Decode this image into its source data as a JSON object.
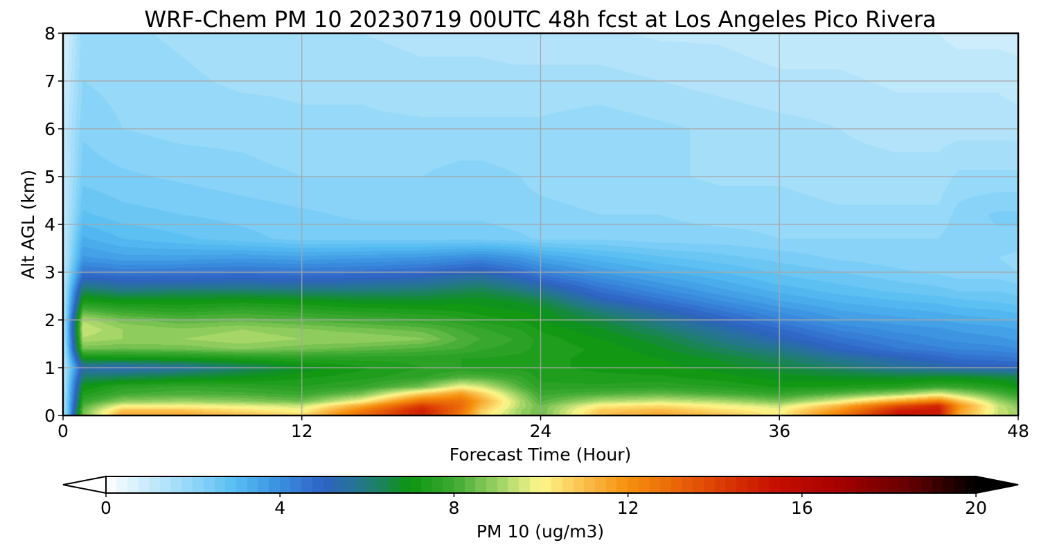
{
  "chart_data": {
    "type": "heatmap",
    "title": "WRF-Chem PM 10  20230719 00UTC 48h fcst at Los Angeles Pico Rivera",
    "xlabel": "Forecast Time (Hour)",
    "ylabel": "Alt AGL (km)",
    "xlim": [
      0,
      48
    ],
    "ylim": [
      0,
      8
    ],
    "x_ticks": [
      0,
      12,
      24,
      36,
      48
    ],
    "y_ticks": [
      0,
      1,
      2,
      3,
      4,
      5,
      6,
      7,
      8
    ],
    "grid": true,
    "colorbar": {
      "label": "PM 10  (ug/m3)",
      "min": 0,
      "max": 20,
      "ticks": [
        0,
        4,
        8,
        12,
        16,
        20
      ],
      "extend": "both",
      "orientation": "horizontal",
      "stops": [
        {
          "value": 0,
          "color": "#ffffff"
        },
        {
          "value": 2,
          "color": "#8fd6f8"
        },
        {
          "value": 3,
          "color": "#55bdf2"
        },
        {
          "value": 4,
          "color": "#3a8fe0"
        },
        {
          "value": 5,
          "color": "#2f62c4"
        },
        {
          "value": 6,
          "color": "#227a80"
        },
        {
          "value": 7,
          "color": "#0d9510"
        },
        {
          "value": 8,
          "color": "#3da931"
        },
        {
          "value": 9,
          "color": "#99d163"
        },
        {
          "value": 10,
          "color": "#fff88c"
        },
        {
          "value": 11,
          "color": "#f9bf4c"
        },
        {
          "value": 12,
          "color": "#f6900c"
        },
        {
          "value": 13,
          "color": "#eb6a08"
        },
        {
          "value": 14.5,
          "color": "#d62e02"
        },
        {
          "value": 15.5,
          "color": "#c40d00"
        },
        {
          "value": 17,
          "color": "#a10000"
        },
        {
          "value": 18.5,
          "color": "#620000"
        },
        {
          "value": 20,
          "color": "#000000"
        }
      ]
    },
    "field": {
      "x": [
        0,
        1,
        3,
        6,
        9,
        12,
        15,
        18,
        20,
        21,
        23,
        24,
        27,
        30,
        33,
        36,
        39,
        42,
        44,
        45,
        47,
        48
      ],
      "y": [
        0,
        0.1,
        0.2,
        0.3,
        0.45,
        0.6,
        0.8,
        1.0,
        1.2,
        1.4,
        1.6,
        1.8,
        2.0,
        2.2,
        2.4,
        2.6,
        2.8,
        3.0,
        3.3,
        3.7,
        4.2,
        5.0,
        6.0,
        7.0,
        8.0
      ],
      "values": [
        [
          1.0,
          8.5,
          11.5,
          11.5,
          11.0,
          10.5,
          13.0,
          15.0,
          12.5,
          10.5,
          9.0,
          8.5,
          11.0,
          11.5,
          11.0,
          10.0,
          12.5,
          15.5,
          15.0,
          11.5,
          9.5,
          9.0
        ],
        [
          1.0,
          8.5,
          11.0,
          11.0,
          10.5,
          10.0,
          12.5,
          15.0,
          12.8,
          10.8,
          9.0,
          8.5,
          10.8,
          11.2,
          10.5,
          10.0,
          12.0,
          15.0,
          15.2,
          11.8,
          9.5,
          9.0
        ],
        [
          1.0,
          8.2,
          10.0,
          10.0,
          9.8,
          9.5,
          11.5,
          14.2,
          13.0,
          11.2,
          9.2,
          8.5,
          10.2,
          10.5,
          10.0,
          9.5,
          11.2,
          13.8,
          14.8,
          12.0,
          9.5,
          8.8
        ],
        [
          1.0,
          7.8,
          8.8,
          9.0,
          8.8,
          8.5,
          10.0,
          12.8,
          12.8,
          11.5,
          9.2,
          8.2,
          9.2,
          9.5,
          9.2,
          8.6,
          9.8,
          11.5,
          12.5,
          11.0,
          9.0,
          8.4
        ],
        [
          1.0,
          7.4,
          8.0,
          8.2,
          8.1,
          7.9,
          8.6,
          10.8,
          11.8,
          10.8,
          8.8,
          7.9,
          8.2,
          8.4,
          8.1,
          7.8,
          8.3,
          9.0,
          9.8,
          9.2,
          8.2,
          7.7
        ],
        [
          1.0,
          7.0,
          7.6,
          7.8,
          7.7,
          7.5,
          7.8,
          8.6,
          10.0,
          9.6,
          8.2,
          7.6,
          7.6,
          7.7,
          7.5,
          7.2,
          7.3,
          7.5,
          7.9,
          7.8,
          7.4,
          7.0
        ],
        [
          1.0,
          6.2,
          6.4,
          6.7,
          6.9,
          7.2,
          7.4,
          7.7,
          8.2,
          8.2,
          7.8,
          7.4,
          7.3,
          7.3,
          7.1,
          6.9,
          6.8,
          6.7,
          6.8,
          6.8,
          6.6,
          6.5
        ],
        [
          1.0,
          5.4,
          5.2,
          5.6,
          6.2,
          6.8,
          7.2,
          7.5,
          7.5,
          7.4,
          7.4,
          7.3,
          7.2,
          7.1,
          6.9,
          6.6,
          6.2,
          5.7,
          5.5,
          5.3,
          5.2,
          5.1
        ],
        [
          1.0,
          7.0,
          7.1,
          7.2,
          7.4,
          7.6,
          7.6,
          7.6,
          7.5,
          7.5,
          7.4,
          7.3,
          7.2,
          7.0,
          6.7,
          6.3,
          5.7,
          5.2,
          4.9,
          4.7,
          4.6,
          4.5
        ],
        [
          1.0,
          8.6,
          8.5,
          8.6,
          8.8,
          8.6,
          8.4,
          8.2,
          8.0,
          7.8,
          7.6,
          7.4,
          7.2,
          6.8,
          6.3,
          5.8,
          5.0,
          4.5,
          4.3,
          4.2,
          4.1,
          4.0
        ],
        [
          1.0,
          9.2,
          9.0,
          9.0,
          9.2,
          9.0,
          9.0,
          8.8,
          8.2,
          8.0,
          7.7,
          7.4,
          7.0,
          6.6,
          5.9,
          5.2,
          4.6,
          4.2,
          4.0,
          3.9,
          3.8,
          3.7
        ],
        [
          1.0,
          9.5,
          9.0,
          8.8,
          9.0,
          8.8,
          8.6,
          8.4,
          8.0,
          7.8,
          7.5,
          7.2,
          6.8,
          6.2,
          5.5,
          4.8,
          4.2,
          3.9,
          3.8,
          3.7,
          3.6,
          3.5
        ],
        [
          1.0,
          9.2,
          8.6,
          8.3,
          8.4,
          8.2,
          8.0,
          7.8,
          7.6,
          7.4,
          7.2,
          7.0,
          6.5,
          5.8,
          5.0,
          4.3,
          3.8,
          3.6,
          3.5,
          3.4,
          3.3,
          3.2
        ],
        [
          1.0,
          8.2,
          7.8,
          7.6,
          7.8,
          7.6,
          7.4,
          7.3,
          7.2,
          7.1,
          7.0,
          6.9,
          6.0,
          5.2,
          4.5,
          3.9,
          3.5,
          3.3,
          3.2,
          3.1,
          3.0,
          2.9
        ],
        [
          1.0,
          7.2,
          7.0,
          7.0,
          7.1,
          7.0,
          6.8,
          6.8,
          6.9,
          6.9,
          6.7,
          6.5,
          5.3,
          4.6,
          4.0,
          3.5,
          3.2,
          3.0,
          2.9,
          2.8,
          2.7,
          2.6
        ],
        [
          1.0,
          6.4,
          6.0,
          6.2,
          6.2,
          6.1,
          6.1,
          6.2,
          6.4,
          6.5,
          6.1,
          5.8,
          4.7,
          4.1,
          3.6,
          3.2,
          2.9,
          2.7,
          2.6,
          2.5,
          2.5,
          2.4
        ],
        [
          1.0,
          5.4,
          5.2,
          5.2,
          5.3,
          5.2,
          5.3,
          5.5,
          5.8,
          5.9,
          5.4,
          5.0,
          4.2,
          3.7,
          3.3,
          2.9,
          2.7,
          2.5,
          2.4,
          2.3,
          2.3,
          2.2
        ],
        [
          1.0,
          4.6,
          4.4,
          4.5,
          4.6,
          4.5,
          4.6,
          4.8,
          5.1,
          5.2,
          4.7,
          4.3,
          3.7,
          3.3,
          3.0,
          2.7,
          2.5,
          2.3,
          2.2,
          2.1,
          2.1,
          2.0
        ],
        [
          1.0,
          3.8,
          3.6,
          3.6,
          3.7,
          3.6,
          3.7,
          3.8,
          4.0,
          4.1,
          3.8,
          3.5,
          3.1,
          2.8,
          2.6,
          2.4,
          2.2,
          2.1,
          2.0,
          2.0,
          2.0,
          1.9
        ],
        [
          1.0,
          3.3,
          3.0,
          2.8,
          2.6,
          2.4,
          2.4,
          2.4,
          2.4,
          2.4,
          2.3,
          2.2,
          2.2,
          2.1,
          2.1,
          2.0,
          2.0,
          2.0,
          2.0,
          2.2,
          2.2,
          2.2
        ],
        [
          1.0,
          2.8,
          2.6,
          2.5,
          2.4,
          2.3,
          2.2,
          2.2,
          2.2,
          2.2,
          2.1,
          2.1,
          2.0,
          2.0,
          1.9,
          1.9,
          1.8,
          1.8,
          1.8,
          2.1,
          2.3,
          2.3
        ],
        [
          1.0,
          2.4,
          2.3,
          2.2,
          2.1,
          2.0,
          2.0,
          2.0,
          2.1,
          2.1,
          2.0,
          1.9,
          1.8,
          1.8,
          1.7,
          1.7,
          1.6,
          1.6,
          1.6,
          1.8,
          1.8,
          1.8
        ],
        [
          1.0,
          2.2,
          2.0,
          1.9,
          1.9,
          1.8,
          1.8,
          1.8,
          1.8,
          1.8,
          1.8,
          1.8,
          1.9,
          1.8,
          1.7,
          1.6,
          1.5,
          1.4,
          1.4,
          1.4,
          1.4,
          1.4
        ],
        [
          0.8,
          2.0,
          1.9,
          1.8,
          1.7,
          1.7,
          1.7,
          1.6,
          1.6,
          1.6,
          1.6,
          1.6,
          1.6,
          1.5,
          1.4,
          1.3,
          1.3,
          1.2,
          1.2,
          1.2,
          1.2,
          1.1
        ],
        [
          0.6,
          1.9,
          1.8,
          1.7,
          1.6,
          1.5,
          1.5,
          1.4,
          1.4,
          1.4,
          1.3,
          1.3,
          1.3,
          1.2,
          1.2,
          1.1,
          1.1,
          1.0,
          1.0,
          0.9,
          0.9,
          0.9
        ]
      ]
    }
  }
}
